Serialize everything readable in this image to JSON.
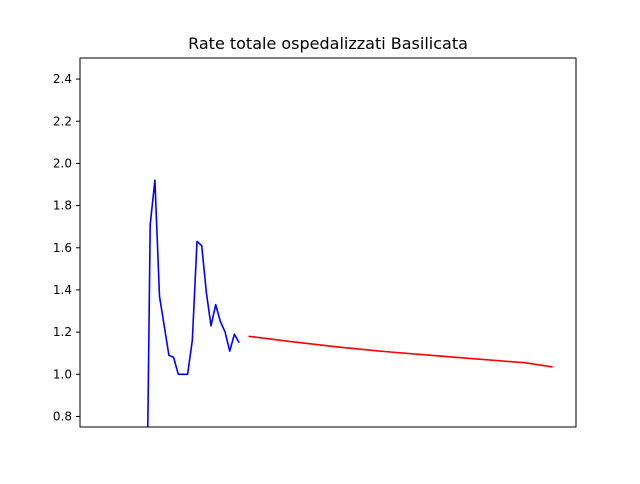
{
  "chart_data": {
    "type": "line",
    "title": "Rate totale ospedalizzati Basilicata",
    "xlabel": "",
    "ylabel": "",
    "ylim": [
      0.75,
      2.5
    ],
    "xlim": [
      0,
      106
    ],
    "yticks": [
      0.8,
      1.0,
      1.2,
      1.4,
      1.6,
      1.8,
      2.0,
      2.2,
      2.4
    ],
    "ytick_labels": [
      "0.8",
      "1.0",
      "1.2",
      "1.4",
      "1.6",
      "1.8",
      "2.0",
      "2.2",
      "2.4"
    ],
    "grid": false,
    "legend": "none",
    "series": [
      {
        "color": "#0000ff",
        "x": [
          14.5,
          15,
          16,
          17,
          18,
          19,
          20,
          21,
          22,
          23,
          24,
          25,
          26,
          27,
          28,
          29,
          30,
          31,
          32,
          33,
          34,
          35
        ],
        "y": [
          0.75,
          1.71,
          1.92,
          1.37,
          1.23,
          1.09,
          1.08,
          1.0,
          1.0,
          1.0,
          1.16,
          1.63,
          1.61,
          1.39,
          1.23,
          1.33,
          1.25,
          1.2,
          1.11,
          1.19,
          1.15,
          null
        ]
      },
      {
        "color": "#ff0000",
        "x": [
          36,
          45,
          55,
          65,
          75,
          85,
          95,
          101
        ],
        "y": [
          1.18,
          1.155,
          1.13,
          1.108,
          1.09,
          1.072,
          1.055,
          1.035
        ]
      }
    ]
  }
}
